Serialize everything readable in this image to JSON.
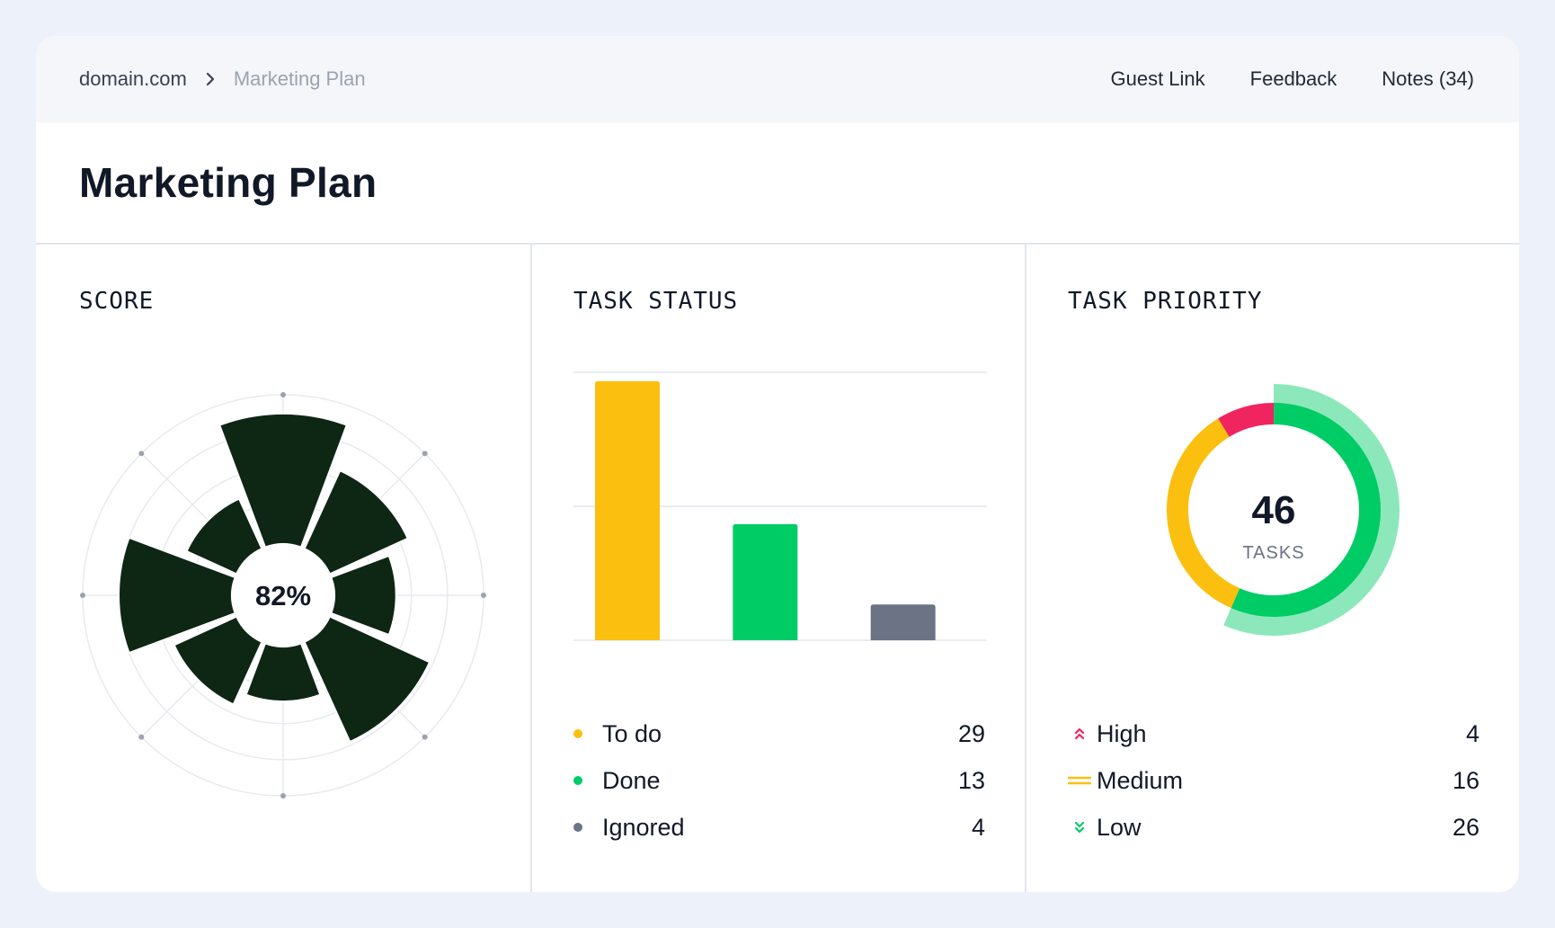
{
  "breadcrumb": {
    "root": "domain.com",
    "current": "Marketing Plan"
  },
  "nav": {
    "guest_link": "Guest Link",
    "feedback": "Feedback",
    "notes": "Notes (34)"
  },
  "page_title": "Marketing Plan",
  "score": {
    "title": "SCORE",
    "value_label": "82%",
    "color": "#0e2614"
  },
  "task_status": {
    "title": "TASK STATUS",
    "items": [
      {
        "label": "To do",
        "value": "29",
        "color": "#fbbf0f"
      },
      {
        "label": "Done",
        "value": "13",
        "color": "#00cc66"
      },
      {
        "label": "Ignored",
        "value": "4",
        "color": "#6b7385"
      }
    ]
  },
  "task_priority": {
    "title": "TASK PRIORITY",
    "total": "46",
    "total_label": "TASKS",
    "items": [
      {
        "label": "High",
        "value": "4",
        "color": "#f0245f",
        "icon": "double-chevron-up-icon"
      },
      {
        "label": "Medium",
        "value": "16",
        "color": "#fbbf0f",
        "icon": "equals-icon"
      },
      {
        "label": "Low",
        "value": "26",
        "color": "#00cc66",
        "icon": "double-chevron-down-icon"
      }
    ]
  },
  "chart_data": [
    {
      "type": "bar",
      "categories": [
        "To do",
        "Done",
        "Ignored"
      ],
      "values": [
        29,
        13,
        4
      ],
      "title": "TASK STATUS",
      "ylim": [
        0,
        30
      ],
      "grid": true
    },
    {
      "type": "pie",
      "categories": [
        "High",
        "Medium",
        "Low"
      ],
      "values": [
        4,
        16,
        26
      ],
      "title": "TASK PRIORITY"
    },
    {
      "type": "area",
      "title": "SCORE",
      "values": [
        3.8,
        2.5,
        1.8,
        3.2,
        1.6,
        2.0,
        3.3,
        1.6
      ],
      "rmax": 4,
      "center_label": "82%"
    }
  ]
}
